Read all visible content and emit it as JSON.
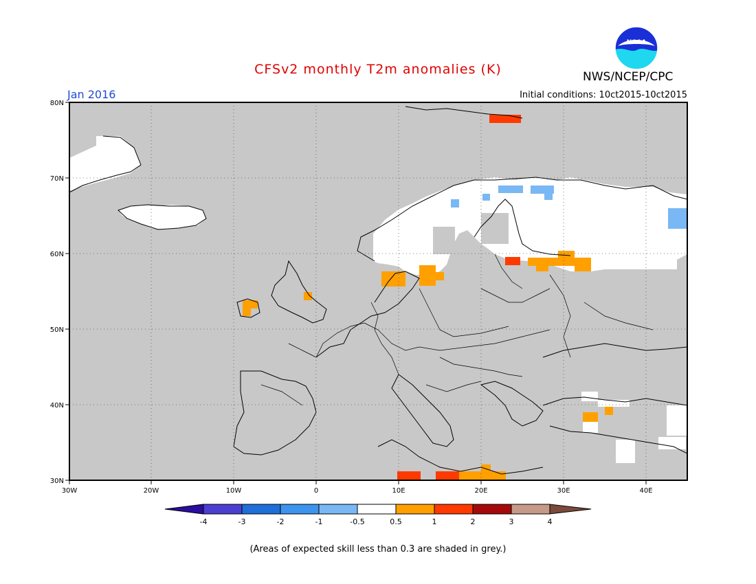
{
  "header": {
    "title": "CFSv2 monthly T2m anomalies (K)",
    "agency": "NWS/NCEP/CPC",
    "logo_text": "NOAA",
    "month": "Jan 2016",
    "initial_conditions": "Initial conditions: 10ct2015-10ct2015"
  },
  "map": {
    "region": "Europe",
    "lon_range": [
      -30,
      45
    ],
    "lat_range": [
      30,
      80
    ],
    "lon_ticks": [
      "30W",
      "20W",
      "10W",
      "0",
      "10E",
      "20E",
      "30E",
      "40E"
    ],
    "lat_ticks": [
      "80N",
      "70N",
      "60N",
      "50N",
      "40N",
      "30N"
    ],
    "grid": true,
    "background_color": "#c8c8c8",
    "anomaly_areas": [
      {
        "label": "Svalbard",
        "category": "2"
      },
      {
        "label": "Southern Finland",
        "category": "2"
      },
      {
        "label": "Western Russia",
        "category": "1"
      },
      {
        "label": "Denmark",
        "category": "1"
      },
      {
        "label": "Southern Sweden",
        "category": "1"
      },
      {
        "label": "Ireland",
        "category": "1"
      },
      {
        "label": "Eastern England",
        "category": "1"
      },
      {
        "label": "Turkey",
        "category": "1"
      },
      {
        "label": "Libya coast",
        "category": "2"
      },
      {
        "label": "Northern Scandinavia",
        "category": "-1"
      },
      {
        "label": "Northwest Russia",
        "category": "-1"
      },
      {
        "label": "Scandinavia and Finland",
        "category": "neutral"
      },
      {
        "label": "Greenland",
        "category": "neutral"
      },
      {
        "label": "Iceland",
        "category": "neutral"
      }
    ]
  },
  "colorbar": {
    "labels": [
      "-4",
      "-3",
      "-2",
      "-1",
      "-0.5",
      "0.5",
      "1",
      "2",
      "3",
      "4"
    ],
    "colors": [
      "#2a0e9e",
      "#4a3fd1",
      "#1e6fd8",
      "#3d94ee",
      "#79b8f4",
      "#ffffff",
      "#ffa000",
      "#ff3a00",
      "#a50a0a",
      "#c69a88",
      "#7a4a3a"
    ]
  },
  "footnote": "(Areas of expected skill less than 0.3 are shaded in grey.)"
}
